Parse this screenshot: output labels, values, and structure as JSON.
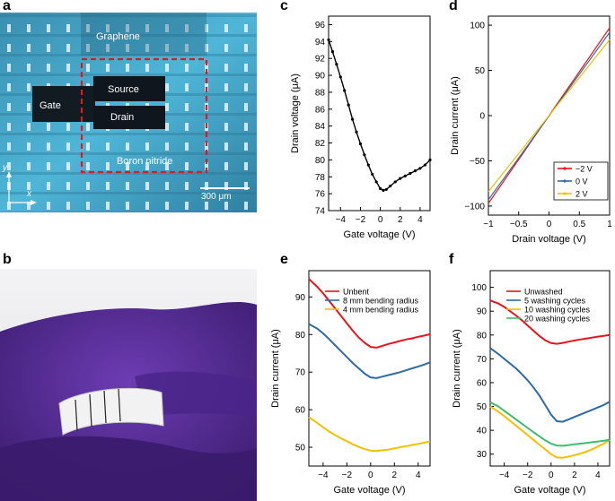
{
  "figure": {
    "panel_labels": {
      "a": "a",
      "b": "b",
      "c": "c",
      "d": "d",
      "e": "e",
      "f": "f"
    },
    "colors": {
      "red": "#e8141c",
      "blue": "#2e6aa6",
      "yellow": "#f3c000",
      "green": "#3ebd6e",
      "black": "#000000"
    }
  },
  "photo_a": {
    "labels": {
      "graphene": "Graphene",
      "gate": "Gate",
      "source": "Source",
      "drain": "Drain",
      "boron_nitride": "Boron nitride",
      "scale_bar": "300 μm",
      "axis_y": "y",
      "axis_x": "x"
    }
  },
  "photo_b": {
    "description_colors": {
      "glove": "#5a2c9a",
      "fabric": "#f2f2f2"
    }
  },
  "chart_data": [
    {
      "panel": "c",
      "type": "line",
      "title": "",
      "xlabel": "Gate voltage (V)",
      "ylabel": "Drain voltage (μA)",
      "xlim": [
        -5.2,
        5
      ],
      "ylim": [
        74,
        97
      ],
      "xticks": [
        -4,
        -2,
        0,
        2,
        4
      ],
      "yticks": [
        74,
        76,
        78,
        80,
        82,
        84,
        86,
        88,
        90,
        92,
        94,
        96
      ],
      "series": [
        {
          "color": "#000000",
          "marker": "dot",
          "x": [
            -5.2,
            -4.8,
            -4.4,
            -4.0,
            -3.6,
            -3.2,
            -2.8,
            -2.4,
            -2.0,
            -1.6,
            -1.2,
            -0.8,
            -0.4,
            0.0,
            0.3,
            0.6,
            1.0,
            1.5,
            2.0,
            2.5,
            3.0,
            3.5,
            4.0,
            4.5,
            5.0
          ],
          "y": [
            94.2,
            92.8,
            91.3,
            89.8,
            88.2,
            86.5,
            84.8,
            83.3,
            81.9,
            80.6,
            79.4,
            78.3,
            77.4,
            76.6,
            76.4,
            76.5,
            76.9,
            77.4,
            77.8,
            78.1,
            78.4,
            78.7,
            79.0,
            79.4,
            80.0
          ]
        }
      ]
    },
    {
      "panel": "d",
      "type": "line",
      "title": "",
      "xlabel": "Drain voltage (V)",
      "ylabel": "Drain current (μA)",
      "xlim": [
        -1.0,
        1.0
      ],
      "ylim": [
        -110,
        110
      ],
      "xticks": [
        -1.0,
        -0.5,
        0.0,
        0.5,
        1.0
      ],
      "yticks": [
        -100,
        -50,
        0,
        50,
        100
      ],
      "legend_position": "bottom-right",
      "series": [
        {
          "name": "−2 V",
          "color": "#e8141c",
          "x": [
            -1.0,
            1.0
          ],
          "y": [
            -97,
            97
          ]
        },
        {
          "name": "0 V",
          "color": "#2e6aa6",
          "x": [
            -1.0,
            1.0
          ],
          "y": [
            -93,
            92
          ]
        },
        {
          "name": "2 V",
          "color": "#f3c000",
          "x": [
            -1.0,
            1.0
          ],
          "y": [
            -84,
            84
          ]
        }
      ]
    },
    {
      "panel": "e",
      "type": "line",
      "title": "",
      "xlabel": "Gate voltage (V)",
      "ylabel": "Drain current (μA)",
      "xlim": [
        -5.2,
        5
      ],
      "ylim": [
        45,
        97
      ],
      "xticks": [
        -4,
        -2,
        0,
        2,
        4
      ],
      "yticks": [
        50,
        60,
        70,
        80,
        90
      ],
      "legend_position": "top-right",
      "series": [
        {
          "name": "Unbent",
          "color": "#e8141c",
          "x": [
            -5.2,
            -4.5,
            -4.0,
            -3.5,
            -3.0,
            -2.5,
            -2.0,
            -1.5,
            -1.0,
            -0.5,
            0.0,
            0.5,
            1.0,
            1.5,
            2.0,
            2.5,
            3.0,
            3.5,
            4.0,
            4.5,
            5.0
          ],
          "y": [
            94.8,
            92.7,
            91.0,
            89.0,
            87.0,
            85.0,
            83.0,
            81.0,
            79.2,
            77.8,
            76.7,
            76.5,
            77.0,
            77.5,
            77.9,
            78.3,
            78.7,
            79.0,
            79.4,
            79.7,
            80.1
          ]
        },
        {
          "name": "8 mm bending radius",
          "color": "#2e6aa6",
          "x": [
            -5.2,
            -4.5,
            -4.0,
            -3.5,
            -3.0,
            -2.5,
            -2.0,
            -1.5,
            -1.0,
            -0.5,
            0.0,
            0.5,
            1.0,
            1.5,
            2.0,
            2.5,
            3.0,
            3.5,
            4.0,
            4.5,
            5.0
          ],
          "y": [
            82.8,
            81.6,
            80.3,
            78.8,
            77.2,
            75.6,
            74.0,
            72.4,
            71.0,
            69.6,
            68.6,
            68.4,
            68.8,
            69.2,
            69.6,
            70.0,
            70.5,
            71.0,
            71.5,
            72.0,
            72.6
          ]
        },
        {
          "name": "4 mm bending radius",
          "color": "#f3c000",
          "x": [
            -5.2,
            -4.5,
            -4.0,
            -3.5,
            -3.0,
            -2.5,
            -2.0,
            -1.5,
            -1.0,
            -0.5,
            0.0,
            0.5,
            1.0,
            1.5,
            2.0,
            2.5,
            3.0,
            3.5,
            4.0,
            4.5,
            5.0
          ],
          "y": [
            58.0,
            56.5,
            55.3,
            54.2,
            53.3,
            52.4,
            51.6,
            50.8,
            50.1,
            49.5,
            49.1,
            49.0,
            49.2,
            49.4,
            49.7,
            50.0,
            50.3,
            50.6,
            50.9,
            51.2,
            51.6
          ]
        }
      ]
    },
    {
      "panel": "f",
      "type": "line",
      "title": "",
      "xlabel": "Gate voltage (V)",
      "ylabel": "Drain current (μA)",
      "xlim": [
        -5.2,
        5
      ],
      "ylim": [
        25,
        107
      ],
      "xticks": [
        -4,
        -2,
        0,
        2,
        4
      ],
      "yticks": [
        30,
        40,
        50,
        60,
        70,
        80,
        90,
        100
      ],
      "legend_position": "top-right",
      "series": [
        {
          "name": "Unwashed",
          "color": "#e8141c",
          "x": [
            -5.2,
            -4.5,
            -4.0,
            -3.5,
            -3.0,
            -2.5,
            -2.0,
            -1.5,
            -1.0,
            -0.5,
            0.0,
            0.5,
            1.0,
            1.5,
            2.0,
            2.5,
            3.0,
            3.5,
            4.0,
            4.5,
            5.0
          ],
          "y": [
            94.5,
            93.2,
            91.8,
            90.0,
            88.2,
            86.2,
            84.0,
            81.8,
            79.6,
            77.8,
            76.6,
            76.3,
            76.7,
            77.2,
            77.7,
            78.1,
            78.5,
            78.9,
            79.3,
            79.6,
            80.0
          ]
        },
        {
          "name": "5 washing cycles",
          "color": "#2e6aa6",
          "x": [
            -5.2,
            -4.5,
            -4.0,
            -3.5,
            -3.0,
            -2.5,
            -2.0,
            -1.5,
            -1.0,
            -0.5,
            0.0,
            0.5,
            1.0,
            1.5,
            2.0,
            2.5,
            3.0,
            3.5,
            4.0,
            4.5,
            5.0
          ],
          "y": [
            74.5,
            72.0,
            70.0,
            68.0,
            66.0,
            63.6,
            61.0,
            58.0,
            54.6,
            50.6,
            46.6,
            43.8,
            43.6,
            44.6,
            45.6,
            46.6,
            47.6,
            48.6,
            49.6,
            50.6,
            52.0
          ]
        },
        {
          "name": "10 washing cycles",
          "color": "#f3c000",
          "x": [
            -5.2,
            -4.5,
            -4.0,
            -3.5,
            -3.0,
            -2.5,
            -2.0,
            -1.5,
            -1.0,
            -0.5,
            0.0,
            0.5,
            1.0,
            1.5,
            2.0,
            2.5,
            3.0,
            3.5,
            4.0,
            4.5,
            5.0
          ],
          "y": [
            50.0,
            47.8,
            46.0,
            44.0,
            42.0,
            40.0,
            38.0,
            36.0,
            34.0,
            32.0,
            30.0,
            28.6,
            28.5,
            29.0,
            29.6,
            30.2,
            31.0,
            32.0,
            33.2,
            34.4,
            36.0
          ]
        },
        {
          "name": "20 washing cycles",
          "color": "#3ebd6e",
          "x": [
            -5.2,
            -4.5,
            -4.0,
            -3.5,
            -3.0,
            -2.5,
            -2.0,
            -1.5,
            -1.0,
            -0.5,
            0.0,
            0.5,
            1.0,
            1.5,
            2.0,
            2.5,
            3.0,
            3.5,
            4.0,
            4.5,
            5.0
          ],
          "y": [
            51.8,
            50.0,
            48.2,
            46.4,
            44.6,
            42.8,
            41.0,
            39.2,
            37.5,
            35.8,
            34.4,
            33.6,
            33.5,
            33.8,
            34.1,
            34.4,
            34.7,
            35.0,
            35.3,
            35.6,
            36.0
          ]
        }
      ]
    }
  ]
}
